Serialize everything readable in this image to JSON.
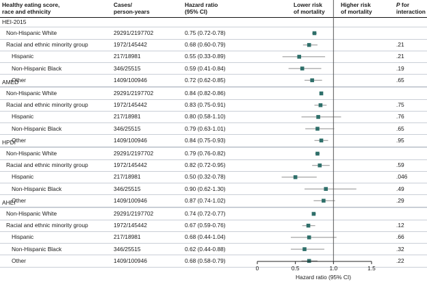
{
  "headers": {
    "score": "Healthy eating score,",
    "score2": "race and ethnicity",
    "cases": "Cases/",
    "cases2": "person-years",
    "hr": "Hazard ratio",
    "hr2": "(95% CI)",
    "lower": "Lower risk",
    "lower2": "of mortality",
    "higher": "Higher risk",
    "higher2": "of mortality",
    "p": "P",
    "p_suffix": " for",
    "p2": "interaction"
  },
  "colors": {
    "marker": "#2e6f6a",
    "ci": "#8c8c8c",
    "band": "#c9ced6",
    "refline": "#555555"
  },
  "chart_data": {
    "type": "forest",
    "xlabel": "Hazard ratio (95% CI)",
    "xlim": [
      0,
      1.5
    ],
    "xticks": [
      0,
      0.5,
      1.0,
      1.5
    ],
    "xtick_labels": [
      "0",
      "0.5",
      "1.0",
      "1.5"
    ],
    "reference_line": 1.0,
    "sections": [
      {
        "name": "HEI-2015",
        "rows": [
          {
            "label": "Non-Hispanic White",
            "cases": "29291/2197702",
            "hr_text": "0.75 (0.72-0.78)",
            "hr": 0.75,
            "lo": 0.72,
            "hi": 0.78,
            "p": "",
            "indent": 0
          },
          {
            "label": "Racial and ethnic minority group",
            "cases": "1972/145442",
            "hr_text": "0.68 (0.60-0.79)",
            "hr": 0.68,
            "lo": 0.6,
            "hi": 0.79,
            "p": ".21",
            "indent": 0
          },
          {
            "label": "Hispanic",
            "cases": "217/18981",
            "hr_text": "0.55 (0.33-0.89)",
            "hr": 0.55,
            "lo": 0.33,
            "hi": 0.89,
            "p": ".21",
            "indent": 1
          },
          {
            "label": "Non-Hispanic Black",
            "cases": "346/25515",
            "hr_text": "0.59 (0.41-0.84)",
            "hr": 0.59,
            "lo": 0.41,
            "hi": 0.84,
            "p": ".19",
            "indent": 1
          },
          {
            "label": "Other",
            "cases": "1409/100946",
            "hr_text": "0.72 (0.62-0.85)",
            "hr": 0.72,
            "lo": 0.62,
            "hi": 0.85,
            "p": ".65",
            "indent": 1
          }
        ]
      },
      {
        "name": "AMED",
        "rows": [
          {
            "label": "Non-Hispanic White",
            "cases": "29291/2197702",
            "hr_text": "0.84 (0.82-0.86)",
            "hr": 0.84,
            "lo": 0.82,
            "hi": 0.86,
            "p": "",
            "indent": 0
          },
          {
            "label": "Racial and ethnic minority group",
            "cases": "1972/145442",
            "hr_text": "0.83 (0.75-0.91)",
            "hr": 0.83,
            "lo": 0.75,
            "hi": 0.91,
            "p": ".75",
            "indent": 0
          },
          {
            "label": "Hispanic",
            "cases": "217/18981",
            "hr_text": "0.80 (0.58-1.10)",
            "hr": 0.8,
            "lo": 0.58,
            "hi": 1.1,
            "p": ".76",
            "indent": 1
          },
          {
            "label": "Non-Hispanic Black",
            "cases": "346/25515",
            "hr_text": "0.79 (0.63-1.01)",
            "hr": 0.79,
            "lo": 0.63,
            "hi": 1.01,
            "p": ".65",
            "indent": 1
          },
          {
            "label": "Other",
            "cases": "1409/100946",
            "hr_text": "0.84 (0.75-0.93)",
            "hr": 0.84,
            "lo": 0.75,
            "hi": 0.93,
            "p": ".95",
            "indent": 1
          }
        ]
      },
      {
        "name": "HPDI",
        "rows": [
          {
            "label": "Non-Hispanic White",
            "cases": "29291/2197702",
            "hr_text": "0.79 (0.76-0.82)",
            "hr": 0.79,
            "lo": 0.76,
            "hi": 0.82,
            "p": "",
            "indent": 0
          },
          {
            "label": "Racial and ethnic minority group",
            "cases": "1972/145442",
            "hr_text": "0.82 (0.72-0.95)",
            "hr": 0.82,
            "lo": 0.72,
            "hi": 0.95,
            "p": ".59",
            "indent": 0
          },
          {
            "label": "Hispanic",
            "cases": "217/18981",
            "hr_text": "0.50 (0.32-0.78)",
            "hr": 0.5,
            "lo": 0.32,
            "hi": 0.78,
            "p": ".046",
            "indent": 1
          },
          {
            "label": "Non-Hispanic Black",
            "cases": "346/25515",
            "hr_text": "0.90 (0.62-1.30)",
            "hr": 0.9,
            "lo": 0.62,
            "hi": 1.3,
            "p": ".49",
            "indent": 1
          },
          {
            "label": "Other",
            "cases": "1409/100946",
            "hr_text": "0.87 (0.74-1.02)",
            "hr": 0.87,
            "lo": 0.74,
            "hi": 1.02,
            "p": ".29",
            "indent": 1
          }
        ]
      },
      {
        "name": "AHEI",
        "rows": [
          {
            "label": "Non-Hispanic White",
            "cases": "29291/2197702",
            "hr_text": "0.74 (0.72-0.77)",
            "hr": 0.74,
            "lo": 0.72,
            "hi": 0.77,
            "p": "",
            "indent": 0
          },
          {
            "label": "Racial and ethnic minority group",
            "cases": "1972/145442",
            "hr_text": "0.67 (0.59-0.76)",
            "hr": 0.67,
            "lo": 0.59,
            "hi": 0.76,
            "p": ".12",
            "indent": 0
          },
          {
            "label": "Hispanic",
            "cases": "217/18981",
            "hr_text": "0.68 (0.44-1.04)",
            "hr": 0.68,
            "lo": 0.44,
            "hi": 1.04,
            "p": ".66",
            "indent": 1
          },
          {
            "label": "Non-Hispanic Black",
            "cases": "346/25515",
            "hr_text": "0.62 (0.44-0.88)",
            "hr": 0.62,
            "lo": 0.44,
            "hi": 0.88,
            "p": ".32",
            "indent": 1
          },
          {
            "label": "Other",
            "cases": "1409/100946",
            "hr_text": "0.68 (0.58-0.79)",
            "hr": 0.68,
            "lo": 0.58,
            "hi": 0.79,
            "p": ".22",
            "indent": 1
          }
        ]
      }
    ]
  }
}
